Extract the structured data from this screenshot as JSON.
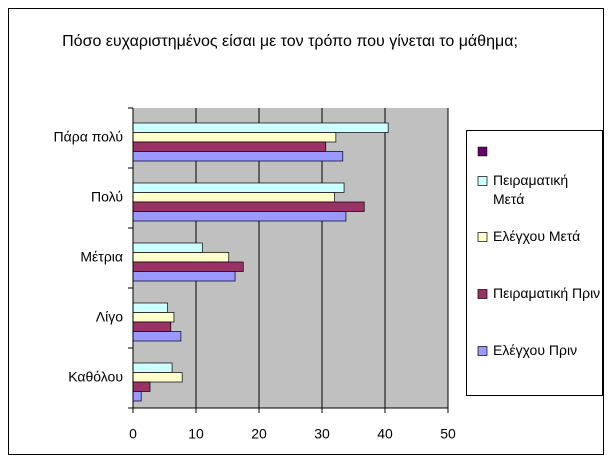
{
  "chart_data": {
    "type": "barh",
    "title": "Πόσο ευχαριστημένος είσαι με τον τρόπο που γίνεται το μάθημα;",
    "categories": [
      "Πάρα πολύ",
      "Πολύ",
      "Μέτρια",
      "Λίγο",
      "Καθόλου"
    ],
    "series": [
      {
        "name": "Πειραματική Μετά",
        "color": "#ccffff",
        "values": [
          40.5,
          33.5,
          11,
          5.5,
          6.2
        ]
      },
      {
        "name": "Ελέγχου Μετά",
        "color": "#ffffcc",
        "values": [
          32.2,
          32,
          15.2,
          6.5,
          7.8
        ]
      },
      {
        "name": "Πειραματική Πριν",
        "color": "#993366",
        "values": [
          30.6,
          36.7,
          17.5,
          6,
          2.7
        ]
      },
      {
        "name": "Ελέγχου Πριν",
        "color": "#9999ff",
        "values": [
          33.3,
          33.8,
          16.2,
          7.6,
          1.3
        ]
      }
    ],
    "xlim": [
      0,
      50
    ],
    "xticks": [
      0,
      10,
      20,
      30,
      40,
      50
    ],
    "grid": true,
    "legend": "right"
  }
}
